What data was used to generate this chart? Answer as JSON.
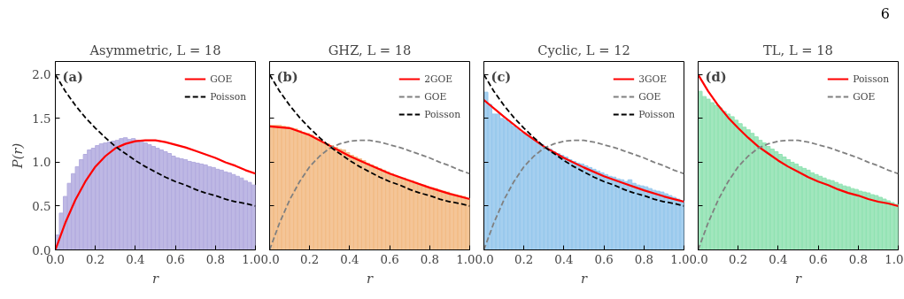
{
  "chart_data": [
    {
      "type": "histogram",
      "title": "Asymmetric, L = 18",
      "xlabel": "r",
      "ylabel": "P(r)",
      "annotations": [
        "(a)"
      ],
      "color": "#b3acdf",
      "bins": [
        0,
        0.02,
        0.04,
        0.06,
        0.08,
        0.1,
        0.12,
        0.14,
        0.16,
        0.18,
        0.2,
        0.22,
        0.24,
        0.26,
        0.28,
        0.3,
        0.32,
        0.34,
        0.36,
        0.38,
        0.4,
        0.42,
        0.44,
        0.46,
        0.48,
        0.5,
        0.52,
        0.54,
        0.56,
        0.58,
        0.6,
        0.62,
        0.64,
        0.66,
        0.68,
        0.7,
        0.72,
        0.74,
        0.76,
        0.78,
        0.8,
        0.82,
        0.84,
        0.86,
        0.88,
        0.9,
        0.92,
        0.94,
        0.96,
        0.98,
        1
      ],
      "values": [
        0.17,
        0.42,
        0.61,
        0.76,
        0.87,
        0.95,
        1.03,
        1.09,
        1.14,
        1.16,
        1.19,
        1.21,
        1.22,
        1.23,
        1.24,
        1.25,
        1.27,
        1.28,
        1.26,
        1.27,
        1.25,
        1.24,
        1.22,
        1.2,
        1.18,
        1.16,
        1.14,
        1.12,
        1.1,
        1.07,
        1.05,
        1.04,
        1.03,
        1.01,
        1.0,
        0.99,
        0.98,
        0.97,
        0.95,
        0.94,
        0.92,
        0.91,
        0.89,
        0.88,
        0.86,
        0.84,
        0.82,
        0.79,
        0.77,
        0.74
      ],
      "series": [
        {
          "name": "GOE",
          "type": "line",
          "color": "#ff0000",
          "line_style": "solid",
          "x": [
            0,
            0.05,
            0.1,
            0.15,
            0.2,
            0.25,
            0.3,
            0.35,
            0.4,
            0.45,
            0.5,
            0.55,
            0.6,
            0.65,
            0.7,
            0.75,
            0.8,
            0.85,
            0.9,
            0.95,
            1
          ],
          "values": [
            0,
            0.31,
            0.57,
            0.78,
            0.95,
            1.07,
            1.16,
            1.21,
            1.24,
            1.25,
            1.25,
            1.23,
            1.2,
            1.17,
            1.13,
            1.09,
            1.05,
            1.0,
            0.96,
            0.91,
            0.87
          ]
        },
        {
          "name": "Poisson",
          "type": "line",
          "color": "#000000",
          "line_style": "dashed",
          "x": [
            0,
            0.05,
            0.1,
            0.15,
            0.2,
            0.25,
            0.3,
            0.35,
            0.4,
            0.45,
            0.5,
            0.55,
            0.6,
            0.65,
            0.7,
            0.75,
            0.8,
            0.85,
            0.9,
            0.95,
            1
          ],
          "values": [
            2.0,
            1.81,
            1.65,
            1.51,
            1.39,
            1.28,
            1.18,
            1.1,
            1.02,
            0.95,
            0.89,
            0.83,
            0.78,
            0.74,
            0.69,
            0.65,
            0.62,
            0.58,
            0.55,
            0.53,
            0.5
          ]
        }
      ],
      "xlim": [
        0,
        1
      ],
      "ylim": [
        0,
        2.15
      ],
      "xticks": [
        {
          "value": 0,
          "label": "0.0"
        },
        {
          "value": 0.2,
          "label": "0.2"
        },
        {
          "value": 0.4,
          "label": "0.4"
        },
        {
          "value": 0.6,
          "label": "0.6"
        },
        {
          "value": 0.8,
          "label": "0.8"
        },
        {
          "value": 1,
          "label": "1.0"
        }
      ],
      "yticks": [
        {
          "value": 0,
          "label": "0.0"
        },
        {
          "value": 0.5,
          "label": "0.5"
        },
        {
          "value": 1,
          "label": "1.0"
        },
        {
          "value": 1.5,
          "label": "1.5"
        },
        {
          "value": 2,
          "label": "2.0"
        }
      ],
      "legend": "top right"
    },
    {
      "type": "histogram",
      "title": "GHZ, L = 18",
      "xlabel": "r",
      "annotations": [
        "(b)"
      ],
      "color": "#f2bb85",
      "bins": [
        0,
        0.02,
        0.04,
        0.06,
        0.08,
        0.1,
        0.12,
        0.14,
        0.16,
        0.18,
        0.2,
        0.22,
        0.24,
        0.26,
        0.28,
        0.3,
        0.32,
        0.34,
        0.36,
        0.38,
        0.4,
        0.42,
        0.44,
        0.46,
        0.48,
        0.5,
        0.52,
        0.54,
        0.56,
        0.58,
        0.6,
        0.62,
        0.64,
        0.66,
        0.68,
        0.7,
        0.72,
        0.74,
        0.76,
        0.78,
        0.8,
        0.82,
        0.84,
        0.86,
        0.88,
        0.9,
        0.92,
        0.94,
        0.96,
        0.98,
        1
      ],
      "values": [
        1.42,
        1.42,
        1.42,
        1.41,
        1.4,
        1.39,
        1.38,
        1.36,
        1.34,
        1.33,
        1.31,
        1.28,
        1.26,
        1.23,
        1.21,
        1.19,
        1.17,
        1.15,
        1.14,
        1.11,
        1.08,
        1.06,
        1.04,
        1.02,
        0.99,
        0.97,
        0.95,
        0.93,
        0.91,
        0.89,
        0.87,
        0.85,
        0.83,
        0.82,
        0.8,
        0.79,
        0.77,
        0.75,
        0.74,
        0.72,
        0.71,
        0.7,
        0.68,
        0.67,
        0.66,
        0.64,
        0.63,
        0.62,
        0.61,
        0.59
      ],
      "series": [
        {
          "name": "2GOE",
          "type": "line",
          "color": "#ff0000",
          "line_style": "solid",
          "x": [
            0,
            0.1,
            0.2,
            0.3,
            0.4,
            0.5,
            0.6,
            0.7,
            0.8,
            0.9,
            1
          ],
          "values": [
            1.41,
            1.39,
            1.31,
            1.19,
            1.07,
            0.97,
            0.87,
            0.79,
            0.71,
            0.64,
            0.58
          ]
        },
        {
          "name": "GOE",
          "type": "line",
          "color": "#808080",
          "line_style": "dashed",
          "x": [
            0,
            0.05,
            0.1,
            0.15,
            0.2,
            0.25,
            0.3,
            0.35,
            0.4,
            0.45,
            0.5,
            0.55,
            0.6,
            0.65,
            0.7,
            0.75,
            0.8,
            0.85,
            0.9,
            0.95,
            1
          ],
          "values": [
            0,
            0.31,
            0.57,
            0.78,
            0.95,
            1.07,
            1.16,
            1.21,
            1.24,
            1.25,
            1.25,
            1.23,
            1.2,
            1.17,
            1.13,
            1.09,
            1.05,
            1.0,
            0.96,
            0.91,
            0.87
          ]
        },
        {
          "name": "Poisson",
          "type": "line",
          "color": "#000000",
          "line_style": "dashed",
          "x": [
            0,
            0.05,
            0.1,
            0.15,
            0.2,
            0.25,
            0.3,
            0.35,
            0.4,
            0.45,
            0.5,
            0.55,
            0.6,
            0.65,
            0.7,
            0.75,
            0.8,
            0.85,
            0.9,
            0.95,
            1
          ],
          "values": [
            2.0,
            1.81,
            1.65,
            1.51,
            1.39,
            1.28,
            1.18,
            1.1,
            1.02,
            0.95,
            0.89,
            0.83,
            0.78,
            0.74,
            0.69,
            0.65,
            0.62,
            0.58,
            0.55,
            0.53,
            0.5
          ]
        }
      ],
      "xlim": [
        0,
        1
      ],
      "ylim": [
        0,
        2.15
      ],
      "xticks": [
        {
          "value": 0,
          "label": "0.0"
        },
        {
          "value": 0.2,
          "label": "0.2"
        },
        {
          "value": 0.4,
          "label": "0.4"
        },
        {
          "value": 0.6,
          "label": "0.6"
        },
        {
          "value": 0.8,
          "label": "0.8"
        },
        {
          "value": 1,
          "label": "1.0"
        }
      ],
      "yticks": [
        0,
        0.5,
        1,
        1.5,
        2
      ],
      "tick_labels": "x",
      "legend": "top right"
    },
    {
      "type": "histogram",
      "title": "Cyclic, L = 12",
      "xlabel": "r",
      "annotations": [
        "(c)"
      ],
      "color": "#95c7ec",
      "bins": [
        0,
        0.02,
        0.04,
        0.06,
        0.08,
        0.1,
        0.12,
        0.14,
        0.16,
        0.18,
        0.2,
        0.22,
        0.24,
        0.26,
        0.28,
        0.3,
        0.32,
        0.34,
        0.36,
        0.38,
        0.4,
        0.42,
        0.44,
        0.46,
        0.48,
        0.5,
        0.52,
        0.54,
        0.56,
        0.58,
        0.6,
        0.62,
        0.64,
        0.66,
        0.68,
        0.7,
        0.72,
        0.74,
        0.76,
        0.78,
        0.8,
        0.82,
        0.84,
        0.86,
        0.88,
        0.9,
        0.92,
        0.94,
        0.96,
        0.98,
        1
      ],
      "values": [
        1.8,
        1.66,
        1.55,
        1.55,
        1.5,
        1.48,
        1.45,
        1.41,
        1.38,
        1.34,
        1.31,
        1.28,
        1.26,
        1.23,
        1.2,
        1.17,
        1.15,
        1.12,
        1.1,
        1.08,
        1.06,
        1.03,
        1.01,
        0.99,
        0.98,
        0.96,
        0.94,
        0.92,
        0.9,
        0.88,
        0.86,
        0.84,
        0.83,
        0.81,
        0.8,
        0.78,
        0.8,
        0.76,
        0.74,
        0.73,
        0.72,
        0.7,
        0.68,
        0.67,
        0.66,
        0.64,
        0.62,
        0.6,
        0.58,
        0.56
      ],
      "series": [
        {
          "name": "3GOE",
          "type": "line",
          "color": "#ff0000",
          "line_style": "solid",
          "x": [
            0,
            0.1,
            0.2,
            0.3,
            0.4,
            0.5,
            0.6,
            0.7,
            0.8,
            0.9,
            1
          ],
          "values": [
            1.71,
            1.52,
            1.34,
            1.18,
            1.05,
            0.94,
            0.84,
            0.76,
            0.68,
            0.61,
            0.55
          ]
        },
        {
          "name": "GOE",
          "type": "line",
          "color": "#808080",
          "line_style": "dashed",
          "x": [
            0,
            0.05,
            0.1,
            0.15,
            0.2,
            0.25,
            0.3,
            0.35,
            0.4,
            0.45,
            0.5,
            0.55,
            0.6,
            0.65,
            0.7,
            0.75,
            0.8,
            0.85,
            0.9,
            0.95,
            1
          ],
          "values": [
            0,
            0.31,
            0.57,
            0.78,
            0.95,
            1.07,
            1.16,
            1.21,
            1.24,
            1.25,
            1.25,
            1.23,
            1.2,
            1.17,
            1.13,
            1.09,
            1.05,
            1.0,
            0.96,
            0.91,
            0.87
          ]
        },
        {
          "name": "Poisson",
          "type": "line",
          "color": "#000000",
          "line_style": "dashed",
          "x": [
            0,
            0.05,
            0.1,
            0.15,
            0.2,
            0.25,
            0.3,
            0.35,
            0.4,
            0.45,
            0.5,
            0.55,
            0.6,
            0.65,
            0.7,
            0.75,
            0.8,
            0.85,
            0.9,
            0.95,
            1
          ],
          "values": [
            2.0,
            1.81,
            1.65,
            1.51,
            1.39,
            1.28,
            1.18,
            1.1,
            1.02,
            0.95,
            0.89,
            0.83,
            0.78,
            0.74,
            0.69,
            0.65,
            0.62,
            0.58,
            0.55,
            0.53,
            0.5
          ]
        }
      ],
      "xlim": [
        0,
        1
      ],
      "ylim": [
        0,
        2.15
      ],
      "xticks": [
        {
          "value": 0,
          "label": "0.0"
        },
        {
          "value": 0.2,
          "label": "0.2"
        },
        {
          "value": 0.4,
          "label": "0.4"
        },
        {
          "value": 0.6,
          "label": "0.6"
        },
        {
          "value": 0.8,
          "label": "0.8"
        },
        {
          "value": 1,
          "label": "1.0"
        }
      ],
      "yticks": [
        0,
        0.5,
        1,
        1.5,
        2
      ],
      "tick_labels": "x",
      "legend": "top right"
    },
    {
      "type": "histogram",
      "title": "TL, L = 18",
      "xlabel": "r",
      "annotations": [
        "(d)",
        "6"
      ],
      "color": "#90e2b2",
      "bins": [
        0,
        0.02,
        0.04,
        0.06,
        0.08,
        0.1,
        0.12,
        0.14,
        0.16,
        0.18,
        0.2,
        0.22,
        0.24,
        0.26,
        0.28,
        0.3,
        0.32,
        0.34,
        0.36,
        0.38,
        0.4,
        0.42,
        0.44,
        0.46,
        0.48,
        0.5,
        0.52,
        0.54,
        0.56,
        0.58,
        0.6,
        0.62,
        0.64,
        0.66,
        0.68,
        0.7,
        0.72,
        0.74,
        0.76,
        0.78,
        0.8,
        0.82,
        0.84,
        0.86,
        0.88,
        0.9,
        0.92,
        0.94,
        0.96,
        0.98,
        1
      ],
      "values": [
        1.81,
        1.75,
        1.72,
        1.68,
        1.65,
        1.62,
        1.58,
        1.55,
        1.52,
        1.48,
        1.44,
        1.4,
        1.37,
        1.33,
        1.29,
        1.25,
        1.22,
        1.18,
        1.15,
        1.12,
        1.09,
        1.06,
        1.03,
        1.0,
        0.98,
        0.95,
        0.93,
        0.91,
        0.88,
        0.86,
        0.84,
        0.82,
        0.8,
        0.79,
        0.77,
        0.75,
        0.73,
        0.72,
        0.7,
        0.69,
        0.67,
        0.66,
        0.65,
        0.63,
        0.62,
        0.6,
        0.58,
        0.56,
        0.54,
        0.52
      ],
      "series": [
        {
          "name": "Poisson",
          "type": "line",
          "color": "#ff0000",
          "line_style": "solid",
          "x": [
            0,
            0.05,
            0.1,
            0.15,
            0.2,
            0.25,
            0.3,
            0.35,
            0.4,
            0.45,
            0.5,
            0.55,
            0.6,
            0.65,
            0.7,
            0.75,
            0.8,
            0.85,
            0.9,
            0.95,
            1
          ],
          "values": [
            2.0,
            1.81,
            1.65,
            1.51,
            1.39,
            1.28,
            1.18,
            1.1,
            1.02,
            0.95,
            0.89,
            0.83,
            0.78,
            0.74,
            0.69,
            0.65,
            0.62,
            0.58,
            0.55,
            0.53,
            0.5
          ]
        },
        {
          "name": "GOE",
          "type": "line",
          "color": "#808080",
          "line_style": "dashed",
          "x": [
            0,
            0.05,
            0.1,
            0.15,
            0.2,
            0.25,
            0.3,
            0.35,
            0.4,
            0.45,
            0.5,
            0.55,
            0.6,
            0.65,
            0.7,
            0.75,
            0.8,
            0.85,
            0.9,
            0.95,
            1
          ],
          "values": [
            0,
            0.31,
            0.57,
            0.78,
            0.95,
            1.07,
            1.16,
            1.21,
            1.24,
            1.25,
            1.25,
            1.23,
            1.2,
            1.17,
            1.13,
            1.09,
            1.05,
            1.0,
            0.96,
            0.91,
            0.87
          ]
        }
      ],
      "xlim": [
        0,
        1
      ],
      "ylim": [
        0,
        2.15
      ],
      "xticks": [
        {
          "value": 0,
          "label": "0.0"
        },
        {
          "value": 0.2,
          "label": "0.2"
        },
        {
          "value": 0.4,
          "label": "0.4"
        },
        {
          "value": 0.6,
          "label": "0.6"
        },
        {
          "value": 0.8,
          "label": "0.8"
        },
        {
          "value": 1,
          "label": "1.0"
        }
      ],
      "yticks": [
        0,
        0.5,
        1,
        1.5,
        2
      ],
      "tick_labels": "x",
      "legend": "top right"
    }
  ]
}
